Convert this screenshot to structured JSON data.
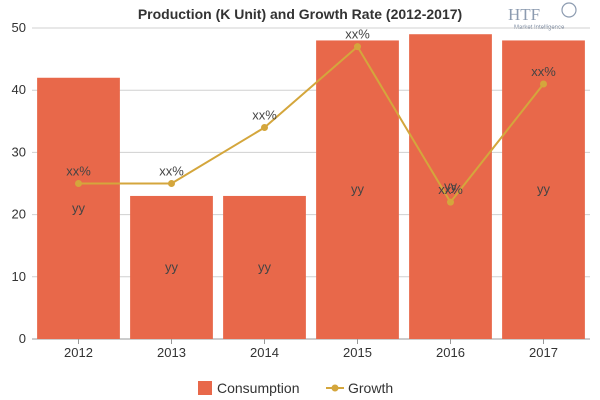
{
  "chart_data": {
    "type": "bar",
    "title": "Production (K Unit) and Growth Rate (2012-2017)",
    "categories": [
      "2012",
      "2013",
      "2014",
      "2015",
      "2016",
      "2017"
    ],
    "ylim": [
      0,
      50
    ],
    "yticks": [
      "0",
      "10",
      "20",
      "30",
      "40",
      "50"
    ],
    "grid": true,
    "legend_position": "bottom",
    "series": [
      {
        "name": "Consumption",
        "type": "bar",
        "color": "#e8684a",
        "values": [
          42,
          23,
          23,
          48,
          49,
          48
        ],
        "data_labels": [
          "yy",
          "yy",
          "yy",
          "yy",
          "yy",
          "yy"
        ]
      },
      {
        "name": "Growth",
        "type": "line",
        "color": "#d4a63c",
        "values": [
          25,
          25,
          34,
          47,
          22,
          41
        ],
        "data_labels": [
          "xx%",
          "xx%",
          "xx%",
          "xx%",
          "xx%",
          "xx%"
        ]
      }
    ]
  },
  "logo": {
    "brand": "HTF",
    "tagline": "Market Intelligence"
  }
}
